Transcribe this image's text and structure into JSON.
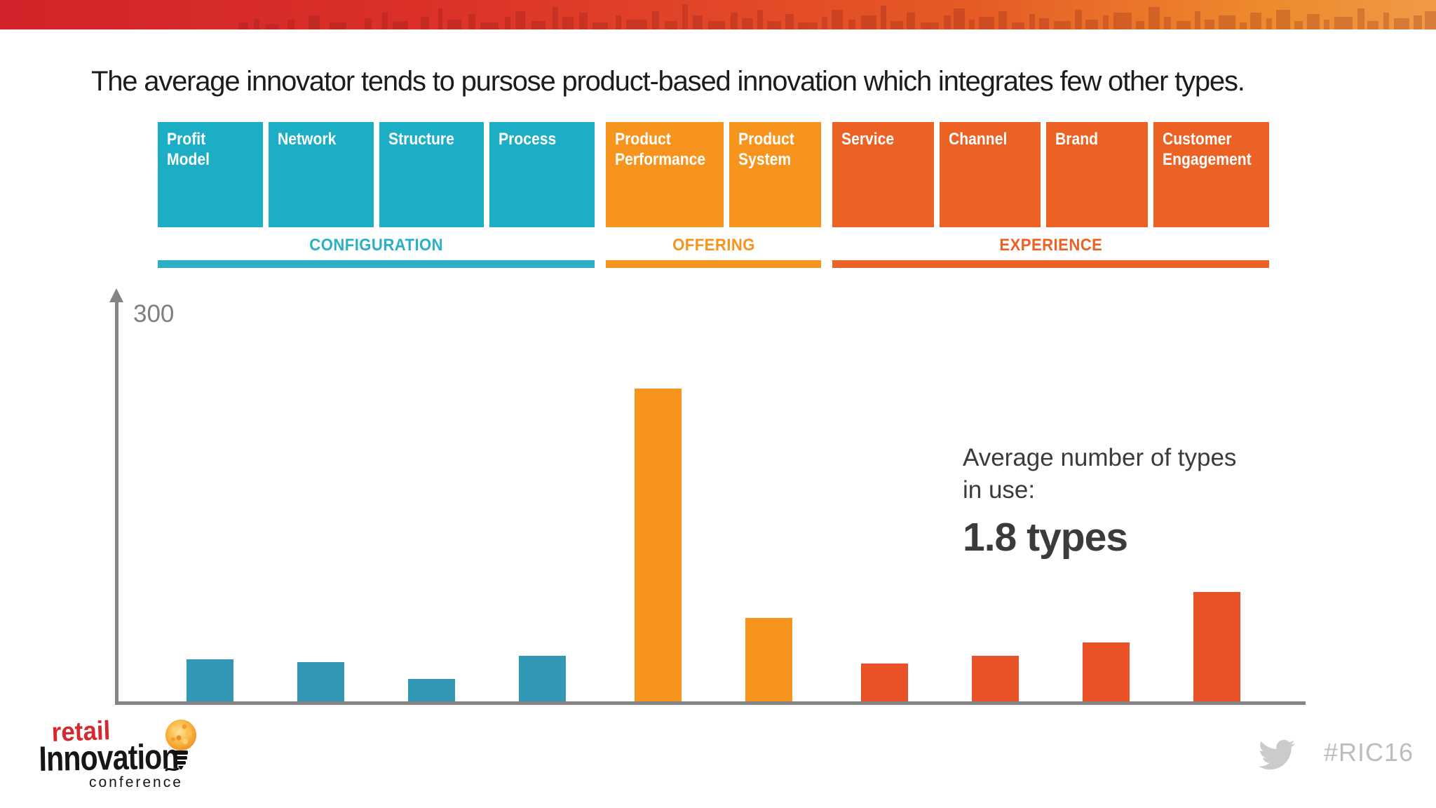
{
  "title": "The average innovator tends to pursose product-based innovation which integrates few other types.",
  "chart_data": {
    "type": "bar",
    "categories": [
      "Profit Model",
      "Network",
      "Structure",
      "Process",
      "Product Performance",
      "Product System",
      "Service",
      "Channel",
      "Brand",
      "Customer Engagement"
    ],
    "values": [
      32,
      30,
      17,
      35,
      240,
      64,
      29,
      35,
      45,
      84
    ],
    "bar_colors": [
      "#3298b5",
      "#3298b5",
      "#3298b5",
      "#3298b5",
      "#f7941e",
      "#f7941e",
      "#e95226",
      "#e95226",
      "#e95226",
      "#e95226"
    ],
    "groups": [
      {
        "label": "CONFIGURATION",
        "types": [
          "Profit Model",
          "Network",
          "Structure",
          "Process"
        ]
      },
      {
        "label": "OFFERING",
        "types": [
          "Product Performance",
          "Product System"
        ]
      },
      {
        "label": "EXPERIENCE",
        "types": [
          "Service",
          "Channel",
          "Brand",
          "Customer Engagement"
        ]
      }
    ],
    "y_axis_top_label": "300",
    "ylim": [
      0,
      300
    ],
    "grid": false,
    "legend": "none",
    "xlabel": "",
    "ylabel": ""
  },
  "annotation": {
    "line1": "Average number of types",
    "line2": "in use:",
    "big": "1.8 types"
  },
  "footer": {
    "logo": {
      "word1": "retail",
      "word2": "Innovation",
      "word3": "conference",
      "icon": "lightbulb-icon"
    },
    "twitter_icon": "twitter-bird-icon",
    "hashtag": "#RIC16"
  },
  "palette": {
    "configuration_box": "#1caec5",
    "offering_box": "#f7941e",
    "experience_box": "#ec6124",
    "configuration_label": "#29b0c6",
    "offering_label": "#f7941e",
    "experience_label": "#ec6124",
    "axis": "#848484",
    "axis_tick_text": "#7f7f7f",
    "annotation_text": "#3b3b3d",
    "logo_red": "#d7282f",
    "logo_black": "#161616",
    "muted_icon": "#cbcbcb",
    "hashtag_text": "#bdbdbd",
    "banner_left": "#d2232a",
    "banner_right": "#f09a46"
  }
}
